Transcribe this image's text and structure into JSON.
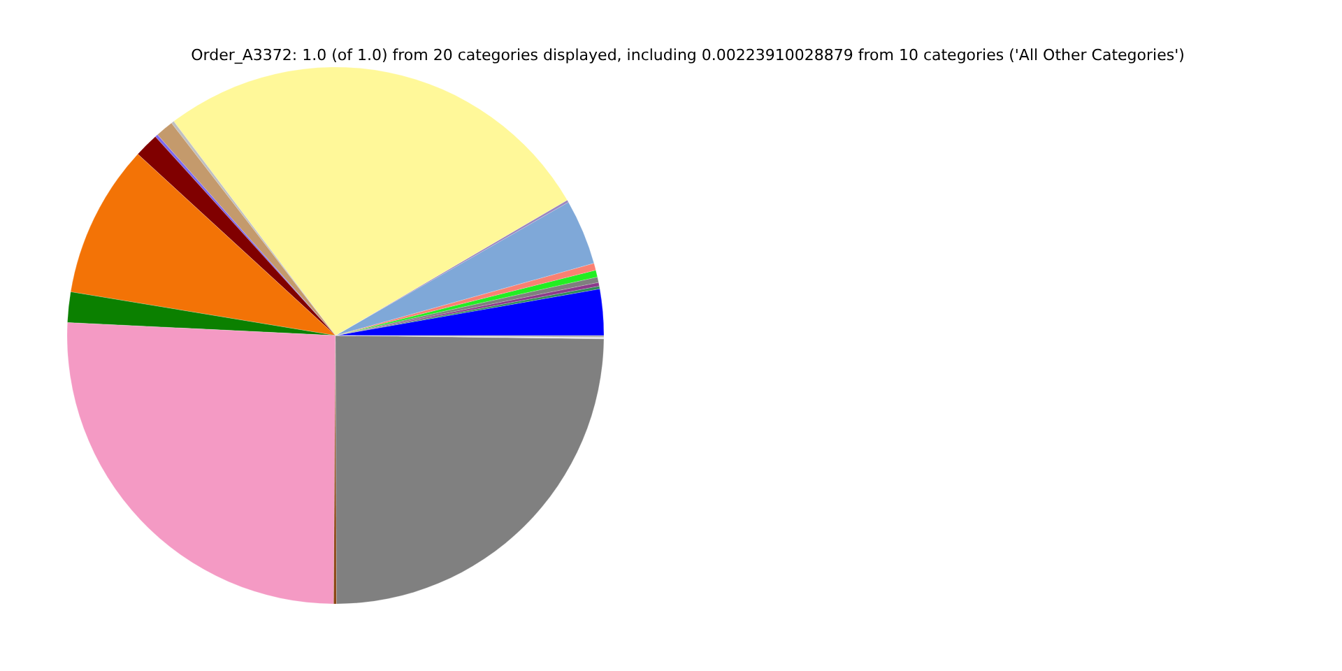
{
  "chart_data": {
    "type": "pie",
    "title": "Order_A3372: 1.0 (of 1.0) from 20 categories displayed, including 0.00223910028879 from 10 categories ('All Other Categories')",
    "categories": [
      null,
      null,
      null,
      null,
      null,
      null,
      null,
      null,
      null,
      null,
      null,
      null,
      null,
      null,
      null,
      null,
      null,
      null,
      null,
      null
    ],
    "values": [
      2.78,
      0.17,
      0.22,
      0.33,
      0.42,
      0.42,
      3.94,
      0.14,
      26.89,
      0.17,
      1.08,
      0.17,
      1.47,
      9.22,
      1.83,
      25.67,
      0.17,
      24.75,
      0.1,
      0.1
    ],
    "colors": [
      "#0000ff",
      "#2e8b57",
      "#8b3a8b",
      "#7f7f7f",
      "#22ee22",
      "#fa8072",
      "#7fa8d8",
      "#9b87c0",
      "#fff899",
      "#c0c0c0",
      "#c49a6c",
      "#7b68ee",
      "#800000",
      "#f37306",
      "#0b8000",
      "#f49ac4",
      "#8b4513",
      "#808080",
      "#e6e6e6",
      "#b0b0b0"
    ]
  }
}
